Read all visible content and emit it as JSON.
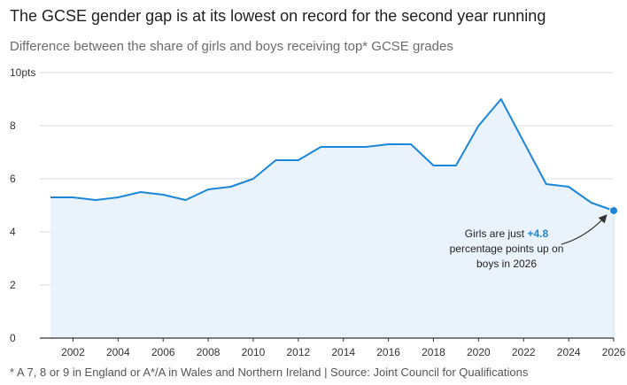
{
  "header": {
    "title": "The GCSE gender gap is at its lowest on record for the second year running",
    "subtitle": "Difference between the share of girls and boys receiving top* GCSE grades"
  },
  "footer": {
    "note": "* A 7, 8 or 9 in England or A*/A in Wales and Northern Ireland | Source: Joint Council for Qualifications"
  },
  "annotation": {
    "line1_prefix": "Girls are just ",
    "line1_value": "+4.8",
    "line2": "percentage points up on",
    "line3": "boys in 2026"
  },
  "colors": {
    "line": "#1c86d8",
    "fill": "#eaf3fc",
    "grid": "#dcdcdc",
    "axis": "#333333"
  },
  "chart_data": {
    "type": "area",
    "title": "The GCSE gender gap is at its lowest on record for the second year running",
    "subtitle": "Difference between the share of girls and boys receiving top* GCSE grades",
    "xlabel": "",
    "ylabel": "",
    "x": [
      2001,
      2002,
      2003,
      2004,
      2005,
      2006,
      2007,
      2008,
      2009,
      2010,
      2011,
      2012,
      2013,
      2014,
      2015,
      2016,
      2017,
      2018,
      2019,
      2020,
      2021,
      2022,
      2023,
      2024,
      2025,
      2026
    ],
    "series": [
      {
        "values": [
          5.3,
          5.3,
          5.2,
          5.3,
          5.5,
          5.4,
          5.2,
          5.6,
          5.7,
          6.0,
          6.7,
          6.7,
          7.2,
          7.2,
          7.2,
          7.3,
          7.3,
          6.5,
          6.5,
          8.0,
          9.0,
          7.4,
          5.8,
          5.7,
          5.1,
          4.8
        ]
      }
    ],
    "xlim": [
      2001,
      2026
    ],
    "ylim": [
      0,
      10
    ],
    "x_ticks": [
      "2002",
      "2004",
      "2006",
      "2008",
      "2010",
      "2012",
      "2014",
      "2016",
      "2018",
      "2020",
      "2022",
      "2024",
      "2026"
    ],
    "y_ticks": [
      {
        "value": 10,
        "label": "10pts"
      },
      {
        "value": 8,
        "label": "8"
      },
      {
        "value": 6,
        "label": "6"
      },
      {
        "value": 4,
        "label": "4"
      },
      {
        "value": 2,
        "label": "2"
      },
      {
        "value": 0,
        "label": "0"
      }
    ],
    "grid": true,
    "legend": "none",
    "highlight": {
      "x": 2026,
      "y": 4.8
    }
  }
}
